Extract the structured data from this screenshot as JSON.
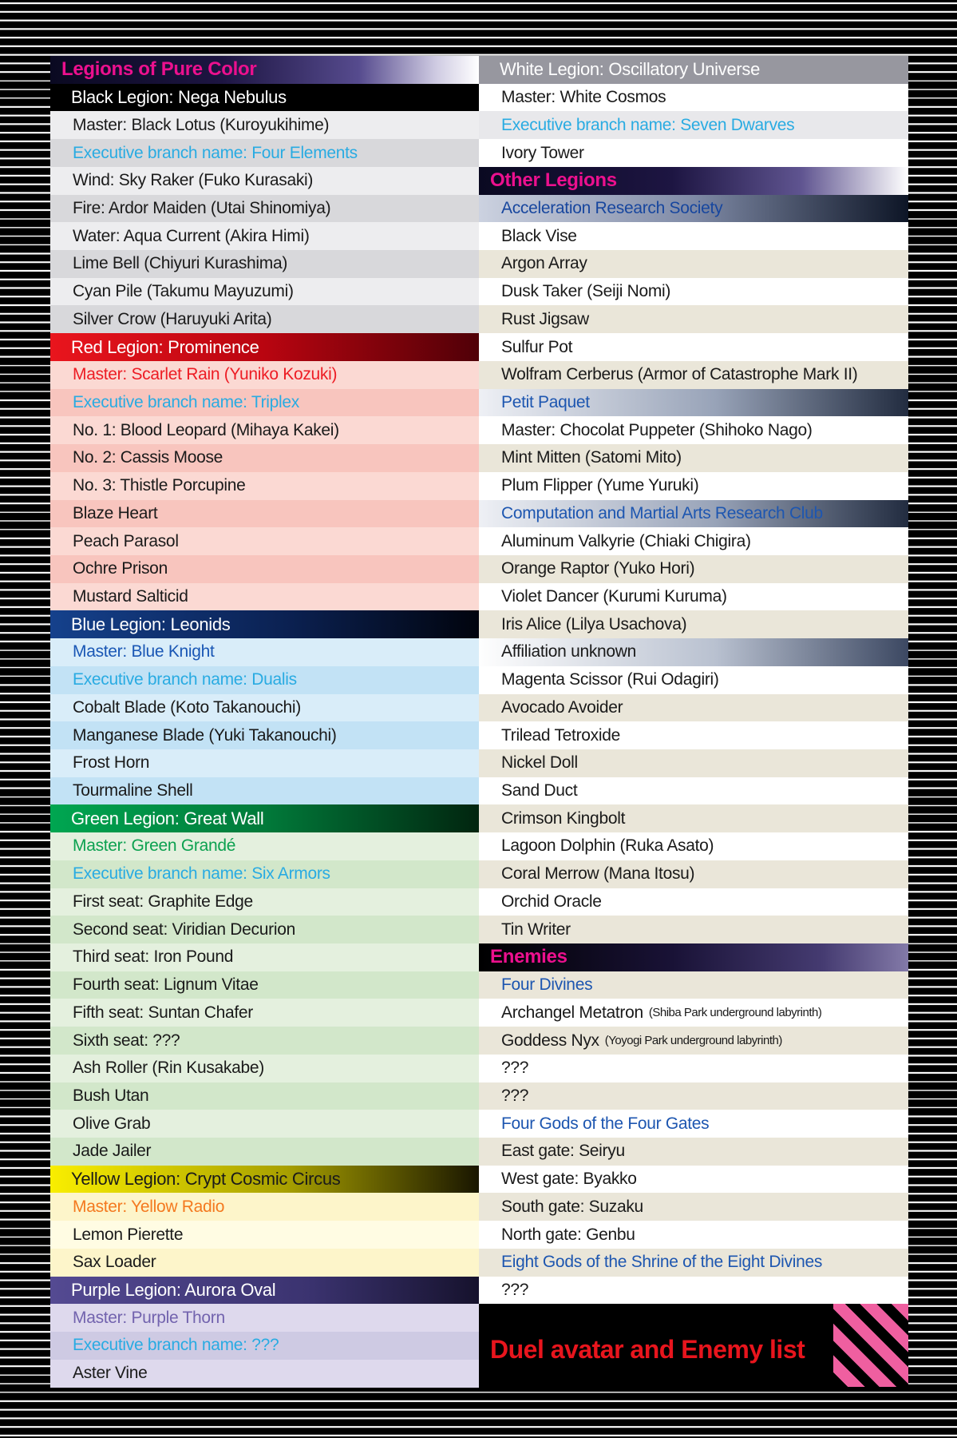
{
  "banner": {
    "label": "Duel avatar and Enemy list",
    "text_color": "#e8151d",
    "background": "#000000",
    "stripe_pink": "#ef5fa0",
    "stripe_black": "#000000"
  },
  "palette": {
    "page_background": "#000000",
    "pinstripe": "#ffffff",
    "magenta_header": "#ec108e",
    "cyan_exec": "#29abe2",
    "ink": "#1a1a1a"
  },
  "left_column": {
    "rows": [
      {
        "text": "Legions of Pure Color",
        "kind": "section",
        "bg": "lg:#0a0921 0%,#1d1542 40%,#564b8e 72%,#cfcbe2 90%,#ffffff 100%",
        "fg": "#ec108e"
      },
      {
        "text": "Black Legion: Nega Nebulus",
        "kind": "legion",
        "bg": "#000000",
        "fg": "#ffffff"
      },
      {
        "text": "Master: Black Lotus (Kuroyukihime)",
        "kind": "row",
        "bg": "#ededef",
        "fg": "#1a1a1a"
      },
      {
        "text": "Executive branch name: Four Elements",
        "kind": "row",
        "bg": "#d8d8db",
        "fg": "#29abe2"
      },
      {
        "text": "Wind: Sky Raker (Fuko Kurasaki)",
        "kind": "row",
        "bg": "#ededef",
        "fg": "#1a1a1a"
      },
      {
        "text": "Fire: Ardor Maiden (Utai Shinomiya)",
        "kind": "row",
        "bg": "#d8d8db",
        "fg": "#1a1a1a"
      },
      {
        "text": "Water: Aqua Current (Akira Himi)",
        "kind": "row",
        "bg": "#ededef",
        "fg": "#1a1a1a"
      },
      {
        "text": "Lime Bell (Chiyuri Kurashima)",
        "kind": "row",
        "bg": "#d8d8db",
        "fg": "#1a1a1a"
      },
      {
        "text": "Cyan Pile (Takumu Mayuzumi)",
        "kind": "row",
        "bg": "#ededef",
        "fg": "#1a1a1a"
      },
      {
        "text": "Silver Crow (Haruyuki Arita)",
        "kind": "row",
        "bg": "#d8d8db",
        "fg": "#1a1a1a"
      },
      {
        "text": "Red Legion: Prominence",
        "kind": "legion",
        "bg": "lg:#e9151d 0%,#b90510 50%,#500007 100%",
        "fg": "#ffffff"
      },
      {
        "text": "Master: Scarlet Rain (Yuniko Kozuki)",
        "kind": "row",
        "bg": "#fbd9d3",
        "fg": "#ed1c24"
      },
      {
        "text": "Executive branch name: Triplex",
        "kind": "row",
        "bg": "#f8c5be",
        "fg": "#29abe2"
      },
      {
        "text": "No. 1: Blood Leopard (Mihaya Kakei)",
        "kind": "row",
        "bg": "#fbd9d3",
        "fg": "#1a1a1a"
      },
      {
        "text": "No. 2: Cassis Moose",
        "kind": "row",
        "bg": "#f8c5be",
        "fg": "#1a1a1a"
      },
      {
        "text": "No. 3: Thistle Porcupine",
        "kind": "row",
        "bg": "#fbd9d3",
        "fg": "#1a1a1a"
      },
      {
        "text": "Blaze Heart",
        "kind": "row",
        "bg": "#f8c5be",
        "fg": "#1a1a1a"
      },
      {
        "text": "Peach Parasol",
        "kind": "row",
        "bg": "#fbd9d3",
        "fg": "#1a1a1a"
      },
      {
        "text": "Ochre Prison",
        "kind": "row",
        "bg": "#f8c5be",
        "fg": "#1a1a1a"
      },
      {
        "text": "Mustard Salticid",
        "kind": "row",
        "bg": "#fbd9d3",
        "fg": "#1a1a1a"
      },
      {
        "text": "Blue Legion: Leonids",
        "kind": "legion",
        "bg": "lg:#15418c 0%,#0b2152 55%,#01040e 100%",
        "fg": "#ffffff"
      },
      {
        "text": "Master: Blue Knight",
        "kind": "row",
        "bg": "#d9edf9",
        "fg": "#1a57b5"
      },
      {
        "text": "Executive branch name: Dualis",
        "kind": "row",
        "bg": "#c2e2f5",
        "fg": "#29abe2"
      },
      {
        "text": "Cobalt Blade (Koto Takanouchi)",
        "kind": "row",
        "bg": "#d9edf9",
        "fg": "#1a1a1a"
      },
      {
        "text": "Manganese Blade (Yuki Takanouchi)",
        "kind": "row",
        "bg": "#c2e2f5",
        "fg": "#1a1a1a"
      },
      {
        "text": "Frost Horn",
        "kind": "row",
        "bg": "#d9edf9",
        "fg": "#1a1a1a"
      },
      {
        "text": "Tourmaline Shell",
        "kind": "row",
        "bg": "#c2e2f5",
        "fg": "#1a1a1a"
      },
      {
        "text": "Green Legion: Great Wall",
        "kind": "legion",
        "bg": "lg:#00a651 0%,#017a3a 50%,#01250f 100%",
        "fg": "#ffffff"
      },
      {
        "text": "Master: Green Grandé",
        "kind": "row",
        "bg": "#e4f0de",
        "fg": "#0ca150"
      },
      {
        "text": "Executive branch name: Six Armors",
        "kind": "row",
        "bg": "#d2e7ca",
        "fg": "#29abe2"
      },
      {
        "text": "First seat: Graphite Edge",
        "kind": "row",
        "bg": "#e4f0de",
        "fg": "#1a1a1a"
      },
      {
        "text": "Second seat: Viridian Decurion",
        "kind": "row",
        "bg": "#d2e7ca",
        "fg": "#1a1a1a"
      },
      {
        "text": "Third seat: Iron Pound",
        "kind": "row",
        "bg": "#e4f0de",
        "fg": "#1a1a1a"
      },
      {
        "text": "Fourth seat: Lignum Vitae",
        "kind": "row",
        "bg": "#d2e7ca",
        "fg": "#1a1a1a"
      },
      {
        "text": "Fifth seat: Suntan Chafer",
        "kind": "row",
        "bg": "#e4f0de",
        "fg": "#1a1a1a"
      },
      {
        "text": "Sixth seat: ???",
        "kind": "row",
        "bg": "#d2e7ca",
        "fg": "#1a1a1a"
      },
      {
        "text": "Ash Roller (Rin Kusakabe)",
        "kind": "row",
        "bg": "#e4f0de",
        "fg": "#1a1a1a"
      },
      {
        "text": "Bush Utan",
        "kind": "row",
        "bg": "#d2e7ca",
        "fg": "#1a1a1a"
      },
      {
        "text": "Olive Grab",
        "kind": "row",
        "bg": "#e4f0de",
        "fg": "#1a1a1a"
      },
      {
        "text": "Jade Jailer",
        "kind": "row",
        "bg": "#d2e7ca",
        "fg": "#1a1a1a"
      },
      {
        "text": "Yellow Legion: Crypt Cosmic Circus",
        "kind": "legion",
        "bg": "lg:#f9ee00 0%,#a8a000 55%,#191600 100%",
        "fg": "#1a1a1a"
      },
      {
        "text": "Master: Yellow Radio",
        "kind": "row",
        "bg": "#fdf5ca",
        "fg": "#f4791f"
      },
      {
        "text": "Lemon Pierette",
        "kind": "row",
        "bg": "#fffce3",
        "fg": "#1a1a1a"
      },
      {
        "text": "Sax Loader",
        "kind": "row",
        "bg": "#fdf5ca",
        "fg": "#1a1a1a"
      },
      {
        "text": "Purple Legion: Aurora Oval",
        "kind": "legion",
        "bg": "lg:#544a92 0%,#3b3370 60%,#16122d 100%",
        "fg": "#ffffff"
      },
      {
        "text": "Master: Purple Thorn",
        "kind": "row",
        "bg": "#ded9ed",
        "fg": "#7263ae"
      },
      {
        "text": "Executive branch name: ???",
        "kind": "row",
        "bg": "#cecae3",
        "fg": "#29abe2"
      },
      {
        "text": "Aster Vine",
        "kind": "row",
        "bg": "#ded9ed",
        "fg": "#1a1a1a"
      }
    ]
  },
  "right_column": {
    "rows": [
      {
        "text": "White Legion: Oscillatory Universe",
        "kind": "legion",
        "bg": "#97979f",
        "fg": "#ffffff"
      },
      {
        "text": "Master: White Cosmos",
        "kind": "row",
        "bg": "#ffffff",
        "fg": "#1a1a1a"
      },
      {
        "text": "Executive branch name: Seven Dwarves",
        "kind": "row",
        "bg": "#e8e8eb",
        "fg": "#29abe2"
      },
      {
        "text": "Ivory Tower",
        "kind": "row",
        "bg": "#ffffff",
        "fg": "#1a1a1a"
      },
      {
        "text": "Other Legions",
        "kind": "section",
        "bg": "lg:#0a0921 0%,#1d1542 45%,#5f5490 75%,#ffffff 100%",
        "fg": "#ec108e"
      },
      {
        "text": "Acceleration Research Society",
        "kind": "group",
        "bg": "lg:#ccd2e0 0%,#7f8aa6 50%,#0d1526 100%",
        "fg": "#17469e"
      },
      {
        "text": "Black Vise",
        "kind": "row",
        "bg": "#ffffff",
        "fg": "#1a1a1a"
      },
      {
        "text": "Argon Array",
        "kind": "row",
        "bg": "#eae6d9",
        "fg": "#1a1a1a"
      },
      {
        "text": "Dusk Taker (Seiji Nomi)",
        "kind": "row",
        "bg": "#ffffff",
        "fg": "#1a1a1a"
      },
      {
        "text": "Rust Jigsaw",
        "kind": "row",
        "bg": "#eae6d9",
        "fg": "#1a1a1a"
      },
      {
        "text": "Sulfur Pot",
        "kind": "row",
        "bg": "#ffffff",
        "fg": "#1a1a1a"
      },
      {
        "text": "Wolfram Cerberus (Armor of Catastrophe Mark II)",
        "kind": "row",
        "bg": "#eae6d9",
        "fg": "#1a1a1a"
      },
      {
        "text": "Petit Paquet",
        "kind": "group",
        "bg": "lg:#eef0f5 0%,#98a3b8 55%,#222c40 100%",
        "fg": "#1d56b0"
      },
      {
        "text": "Master: Chocolat Puppeter (Shihoko Nago)",
        "kind": "row",
        "bg": "#ffffff",
        "fg": "#1a1a1a"
      },
      {
        "text": "Mint Mitten (Satomi Mito)",
        "kind": "row",
        "bg": "#eae6d9",
        "fg": "#1a1a1a"
      },
      {
        "text": "Plum Flipper (Yume Yuruki)",
        "kind": "row",
        "bg": "#ffffff",
        "fg": "#1a1a1a"
      },
      {
        "text": "Computation and Martial Arts Research Club",
        "kind": "group",
        "bg": "lg:#eef0f5 0%,#98a3b8 55%,#222c40 100%",
        "fg": "#1d56b0"
      },
      {
        "text": "Aluminum Valkyrie (Chiaki Chigira)",
        "kind": "row",
        "bg": "#ffffff",
        "fg": "#1a1a1a"
      },
      {
        "text": "Orange Raptor (Yuko Hori)",
        "kind": "row",
        "bg": "#eae6d9",
        "fg": "#1a1a1a"
      },
      {
        "text": "Violet Dancer (Kurumi Kuruma)",
        "kind": "row",
        "bg": "#ffffff",
        "fg": "#1a1a1a"
      },
      {
        "text": "Iris Alice (Lilya Usachova)",
        "kind": "row",
        "bg": "#eae6d9",
        "fg": "#1a1a1a"
      },
      {
        "text": "Affiliation unknown",
        "kind": "group",
        "bg": "lg:#fefefe 0%,#b9c1d0 55%,#3c4862 100%",
        "fg": "#1a1a1a"
      },
      {
        "text": "Magenta Scissor (Rui Odagiri)",
        "kind": "row",
        "bg": "#ffffff",
        "fg": "#1a1a1a"
      },
      {
        "text": "Avocado Avoider",
        "kind": "row",
        "bg": "#eae6d9",
        "fg": "#1a1a1a"
      },
      {
        "text": "Trilead Tetroxide",
        "kind": "row",
        "bg": "#ffffff",
        "fg": "#1a1a1a"
      },
      {
        "text": "Nickel Doll",
        "kind": "row",
        "bg": "#eae6d9",
        "fg": "#1a1a1a"
      },
      {
        "text": "Sand Duct",
        "kind": "row",
        "bg": "#ffffff",
        "fg": "#1a1a1a"
      },
      {
        "text": "Crimson Kingbolt",
        "kind": "row",
        "bg": "#eae6d9",
        "fg": "#1a1a1a"
      },
      {
        "text": "Lagoon Dolphin (Ruka Asato)",
        "kind": "row",
        "bg": "#ffffff",
        "fg": "#1a1a1a"
      },
      {
        "text": "Coral Merrow (Mana Itosu)",
        "kind": "row",
        "bg": "#eae6d9",
        "fg": "#1a1a1a"
      },
      {
        "text": "Orchid Oracle",
        "kind": "row",
        "bg": "#ffffff",
        "fg": "#1a1a1a"
      },
      {
        "text": "Tin Writer",
        "kind": "row",
        "bg": "#eae6d9",
        "fg": "#1a1a1a"
      },
      {
        "text": "Enemies",
        "kind": "section",
        "bg": "lg:#000000 0%,#191236 45%,#453b71 80%,#837aa8 100%",
        "fg": "#ec108e"
      },
      {
        "text": "Four Divines",
        "kind": "group",
        "bg": "#eae6d9",
        "fg": "#1d56b0"
      },
      {
        "text": "Archangel Metatron",
        "note": "(Shiba Park underground labyrinth)",
        "kind": "row",
        "bg": "#ffffff",
        "fg": "#1a1a1a"
      },
      {
        "text": "Goddess Nyx",
        "note": "(Yoyogi Park underground labyrinth)",
        "kind": "row",
        "bg": "#eae6d9",
        "fg": "#1a1a1a"
      },
      {
        "text": "???",
        "kind": "row",
        "bg": "#ffffff",
        "fg": "#1a1a1a"
      },
      {
        "text": "???",
        "kind": "row",
        "bg": "#eae6d9",
        "fg": "#1a1a1a"
      },
      {
        "text": "Four Gods of the Four Gates",
        "kind": "group",
        "bg": "#ffffff",
        "fg": "#1d56b0"
      },
      {
        "text": "East gate: Seiryu",
        "kind": "row",
        "bg": "#eae6d9",
        "fg": "#1a1a1a"
      },
      {
        "text": "West gate: Byakko",
        "kind": "row",
        "bg": "#ffffff",
        "fg": "#1a1a1a"
      },
      {
        "text": "South gate: Suzaku",
        "kind": "row",
        "bg": "#eae6d9",
        "fg": "#1a1a1a"
      },
      {
        "text": "North gate: Genbu",
        "kind": "row",
        "bg": "#ffffff",
        "fg": "#1a1a1a"
      },
      {
        "text": "Eight Gods of the Shrine of the Eight Divines",
        "kind": "group",
        "bg": "#eae6d9",
        "fg": "#1d56b0"
      },
      {
        "text": "???",
        "kind": "row",
        "bg": "#ffffff",
        "fg": "#1a1a1a"
      }
    ]
  }
}
